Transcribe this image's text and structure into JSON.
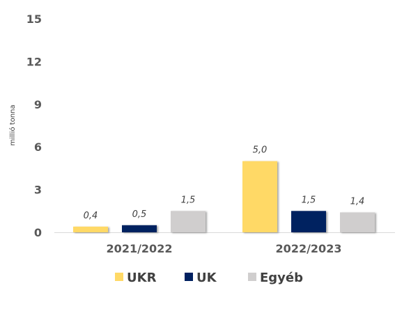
{
  "chart_data": {
    "type": "bar",
    "title": "",
    "xlabel": "",
    "ylabel": "millió tonna",
    "ylim": [
      0,
      15
    ],
    "yticks": [
      0,
      3,
      6,
      9,
      12,
      15
    ],
    "ytick_labels": [
      "0",
      "3",
      "6",
      "9",
      "12",
      "15"
    ],
    "grid": false,
    "legend_position": "bottom",
    "categories": [
      "2021/2022",
      "2022/2023"
    ],
    "series": [
      {
        "name": "UKR",
        "color": "#FFD966",
        "values": [
          0.4,
          5.0
        ],
        "labels": [
          "0,4",
          "5,0"
        ]
      },
      {
        "name": "UK",
        "color": "#002060",
        "values": [
          0.5,
          1.5
        ],
        "labels": [
          "0,5",
          "1,5"
        ]
      },
      {
        "name": "Egyéb",
        "color": "#D0CECE",
        "values": [
          1.5,
          1.4
        ],
        "labels": [
          "1,5",
          "1,4"
        ]
      }
    ]
  }
}
